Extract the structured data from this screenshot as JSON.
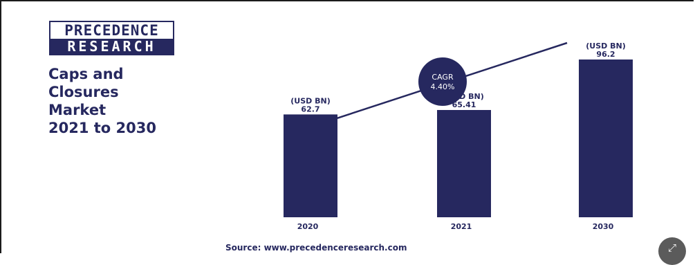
{
  "logo": {
    "line1": "PRECEDENCE",
    "line2": "RESEARCH"
  },
  "header": {
    "title": "Caps and\nClosures\nMarket\n2021 to 2030"
  },
  "cagr": {
    "label": "CAGR",
    "value": "4.40%"
  },
  "chart_data": {
    "type": "bar",
    "categories": [
      "2020",
      "2021",
      "2030"
    ],
    "values": [
      62.7,
      65.41,
      96.2
    ],
    "value_unit_label": "(USD BN)",
    "value_labels": [
      "62.7",
      "65.41",
      "96.2"
    ],
    "title": "Caps and Closures Market 2021 to 2030",
    "xlabel": "",
    "ylabel": "",
    "grid": false,
    "trend_line": true
  },
  "footer": {
    "source": "Source: www.precedenceresearch.com"
  },
  "colors": {
    "primary": "#26285f",
    "text": "#26285f",
    "button": "#5b5b5b"
  },
  "icons": {
    "expand": "expand-icon"
  }
}
